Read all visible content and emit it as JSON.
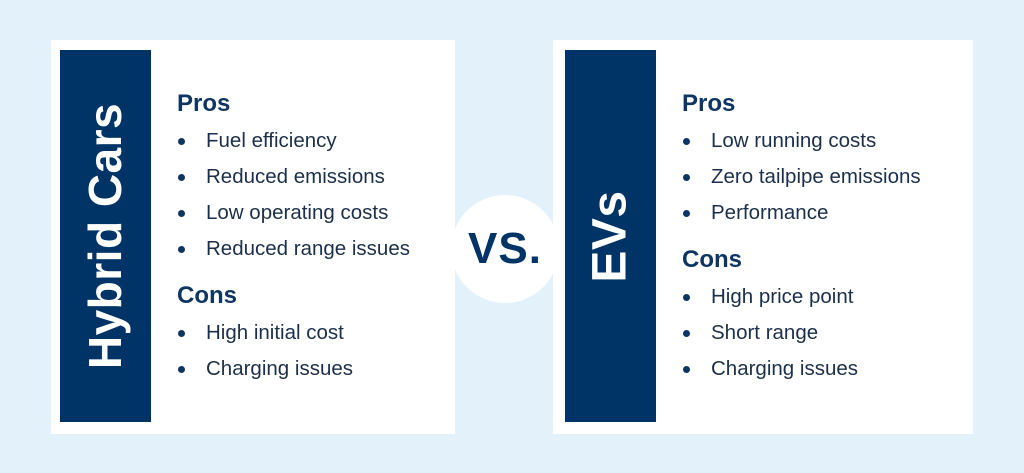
{
  "left_card": {
    "title": "Hybrid Cars",
    "pros_heading": "Pros",
    "pros": [
      "Fuel efficiency",
      "Reduced emissions",
      "Low operating costs",
      "Reduced range issues"
    ],
    "cons_heading": "Cons",
    "cons": [
      "High initial cost",
      "Charging issues"
    ]
  },
  "vs_label": "VS.",
  "right_card": {
    "title": "EVs",
    "pros_heading": "Pros",
    "pros": [
      "Low running costs",
      "Zero tailpipe emissions",
      "Performance"
    ],
    "cons_heading": "Cons",
    "cons": [
      "High price point",
      "Short range",
      "Charging issues"
    ]
  },
  "colors": {
    "background": "#e3f1fb",
    "band": "#003466",
    "heading_text": "#0f3563",
    "item_text": "#1c2f4b"
  }
}
